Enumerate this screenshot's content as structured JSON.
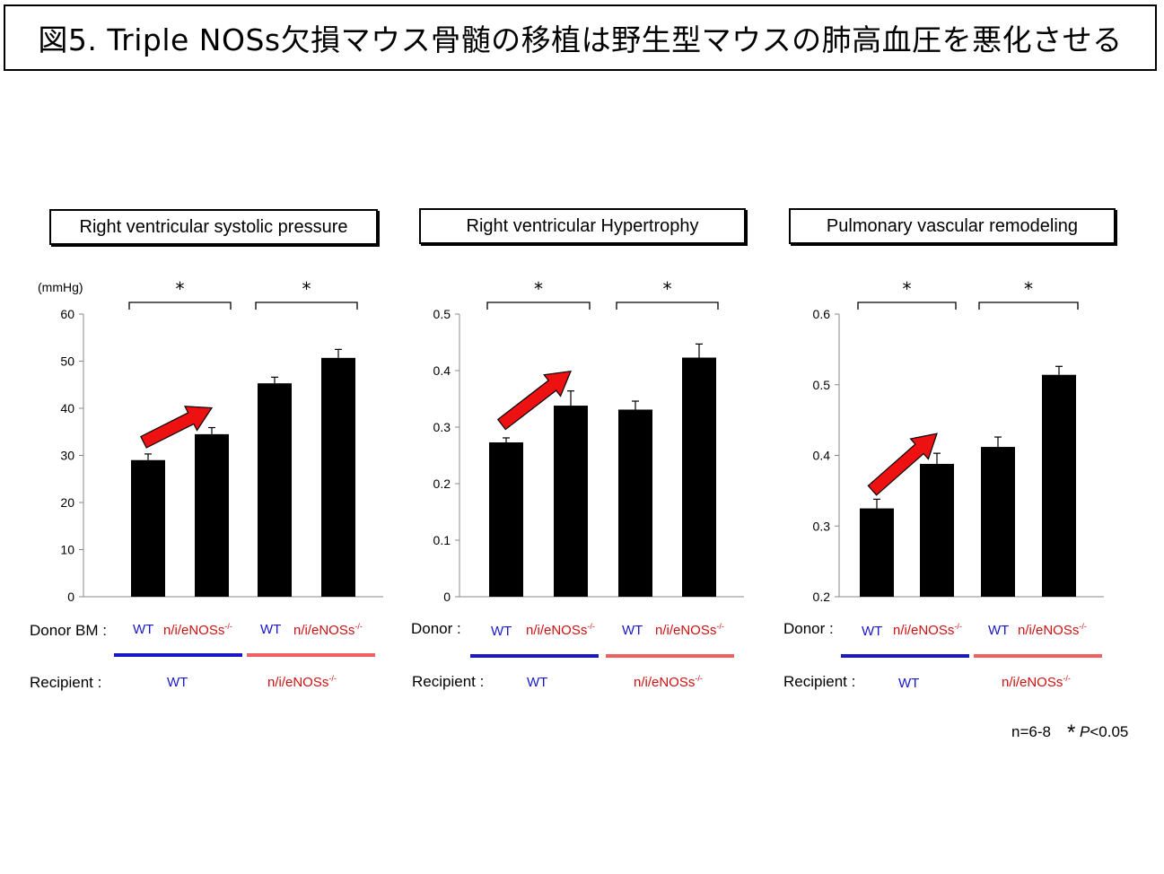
{
  "title": "図5. Triple NOSs欠損マウス骨髄の移植は野生型マウスの肺高血圧を悪化させる",
  "colors": {
    "bar": "#000000",
    "wt": "#1818c8",
    "ko": "#d01010",
    "ko_line": "#f06060",
    "arrow": "#ee1111"
  },
  "chart_data": [
    {
      "type": "bar",
      "title": "Right ventricular systolic pressure",
      "ylabel": "(mmHg)",
      "ylim": [
        0,
        60
      ],
      "yticks": [
        "0",
        "10",
        "20",
        "30",
        "40",
        "50",
        "60"
      ],
      "values": [
        29,
        34.5,
        45.3,
        50.7
      ],
      "errors": [
        1.3,
        1.4,
        1.3,
        1.8
      ],
      "significance": [
        "*",
        "*"
      ],
      "donor_label": "Donor BM :",
      "recipient_label": "Recipient :"
    },
    {
      "type": "bar",
      "title": "Right ventricular Hypertrophy",
      "ylabel": "",
      "ylim": [
        0,
        0.5
      ],
      "yticks": [
        "0",
        "0.1",
        "0.2",
        "0.3",
        "0.4",
        "0.5"
      ],
      "values": [
        0.273,
        0.338,
        0.331,
        0.423
      ],
      "errors": [
        0.008,
        0.026,
        0.015,
        0.024
      ],
      "significance": [
        "*",
        "*"
      ],
      "donor_label": "Donor :",
      "recipient_label": "Recipient :"
    },
    {
      "type": "bar",
      "title": "Pulmonary vascular remodeling",
      "ylabel": "",
      "ylim": [
        0.2,
        0.6
      ],
      "yticks": [
        "0.2",
        "0.3",
        "0.4",
        "0.5",
        "0.6"
      ],
      "values": [
        0.325,
        0.388,
        0.412,
        0.514
      ],
      "errors": [
        0.013,
        0.015,
        0.014,
        0.012
      ],
      "significance": [
        "*",
        "*"
      ],
      "donor_label": "Donor :",
      "recipient_label": "Recipient :"
    }
  ],
  "groups": {
    "wt": "WT",
    "ko": "n/i/eNOSs",
    "ko_sup": "-/-"
  },
  "footnote": {
    "n": "n=6-8",
    "star": "*",
    "p_label": "P",
    "p_value": "<0.05"
  }
}
